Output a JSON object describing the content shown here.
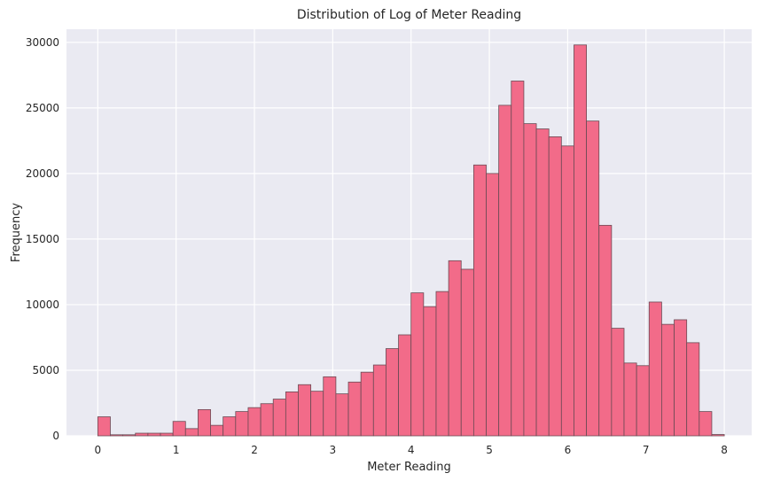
{
  "chart_data": {
    "type": "bar",
    "title": "Distribution of Log of Meter Reading",
    "xlabel": "Meter Reading",
    "ylabel": "Frequency",
    "xlim": [
      -0.4,
      8.35
    ],
    "ylim": [
      0,
      31000
    ],
    "xticks": [
      0,
      1,
      2,
      3,
      4,
      5,
      6,
      7,
      8
    ],
    "xtick_labels": [
      "0",
      "1",
      "2",
      "3",
      "4",
      "5",
      "6",
      "7",
      "8"
    ],
    "yticks": [
      0,
      5000,
      10000,
      15000,
      20000,
      25000,
      30000
    ],
    "ytick_labels": [
      "0",
      "5000",
      "10000",
      "15000",
      "20000",
      "25000",
      "30000"
    ],
    "grid": true,
    "bin_edges": [
      0,
      0.16,
      0.32,
      0.48,
      0.64,
      0.8,
      0.96,
      1.12,
      1.28,
      1.44,
      1.6,
      1.76,
      1.92,
      2.08,
      2.24,
      2.4,
      2.56,
      2.72,
      2.88,
      3.04,
      3.2,
      3.36,
      3.52,
      3.68,
      3.84,
      4.0,
      4.16,
      4.32,
      4.48,
      4.64,
      4.8,
      4.96,
      5.12,
      5.28,
      5.44,
      5.6,
      5.76,
      5.92,
      6.08,
      6.24,
      6.4,
      6.56,
      6.72,
      6.88,
      7.04,
      7.2,
      7.36,
      7.52,
      7.68,
      7.84,
      8.0
    ],
    "values": [
      1450,
      80,
      80,
      200,
      200,
      200,
      1100,
      550,
      2000,
      800,
      1450,
      1850,
      2150,
      2450,
      2800,
      3350,
      3900,
      3400,
      4500,
      3200,
      4100,
      4850,
      5400,
      6650,
      7700,
      10900,
      9850,
      11000,
      13350,
      12700,
      20650,
      20000,
      25200,
      27050,
      23800,
      23400,
      22800,
      22100,
      29800,
      24000,
      16050,
      8200,
      5550,
      5350,
      10200,
      8500,
      8850,
      7100,
      1850,
      100
    ],
    "colors": {
      "bar_fill": "#f26b89",
      "bar_edge": "#6b4a54",
      "plot_bg": "#eaeaf2",
      "grid": "#ffffff",
      "text": "#262626"
    }
  }
}
